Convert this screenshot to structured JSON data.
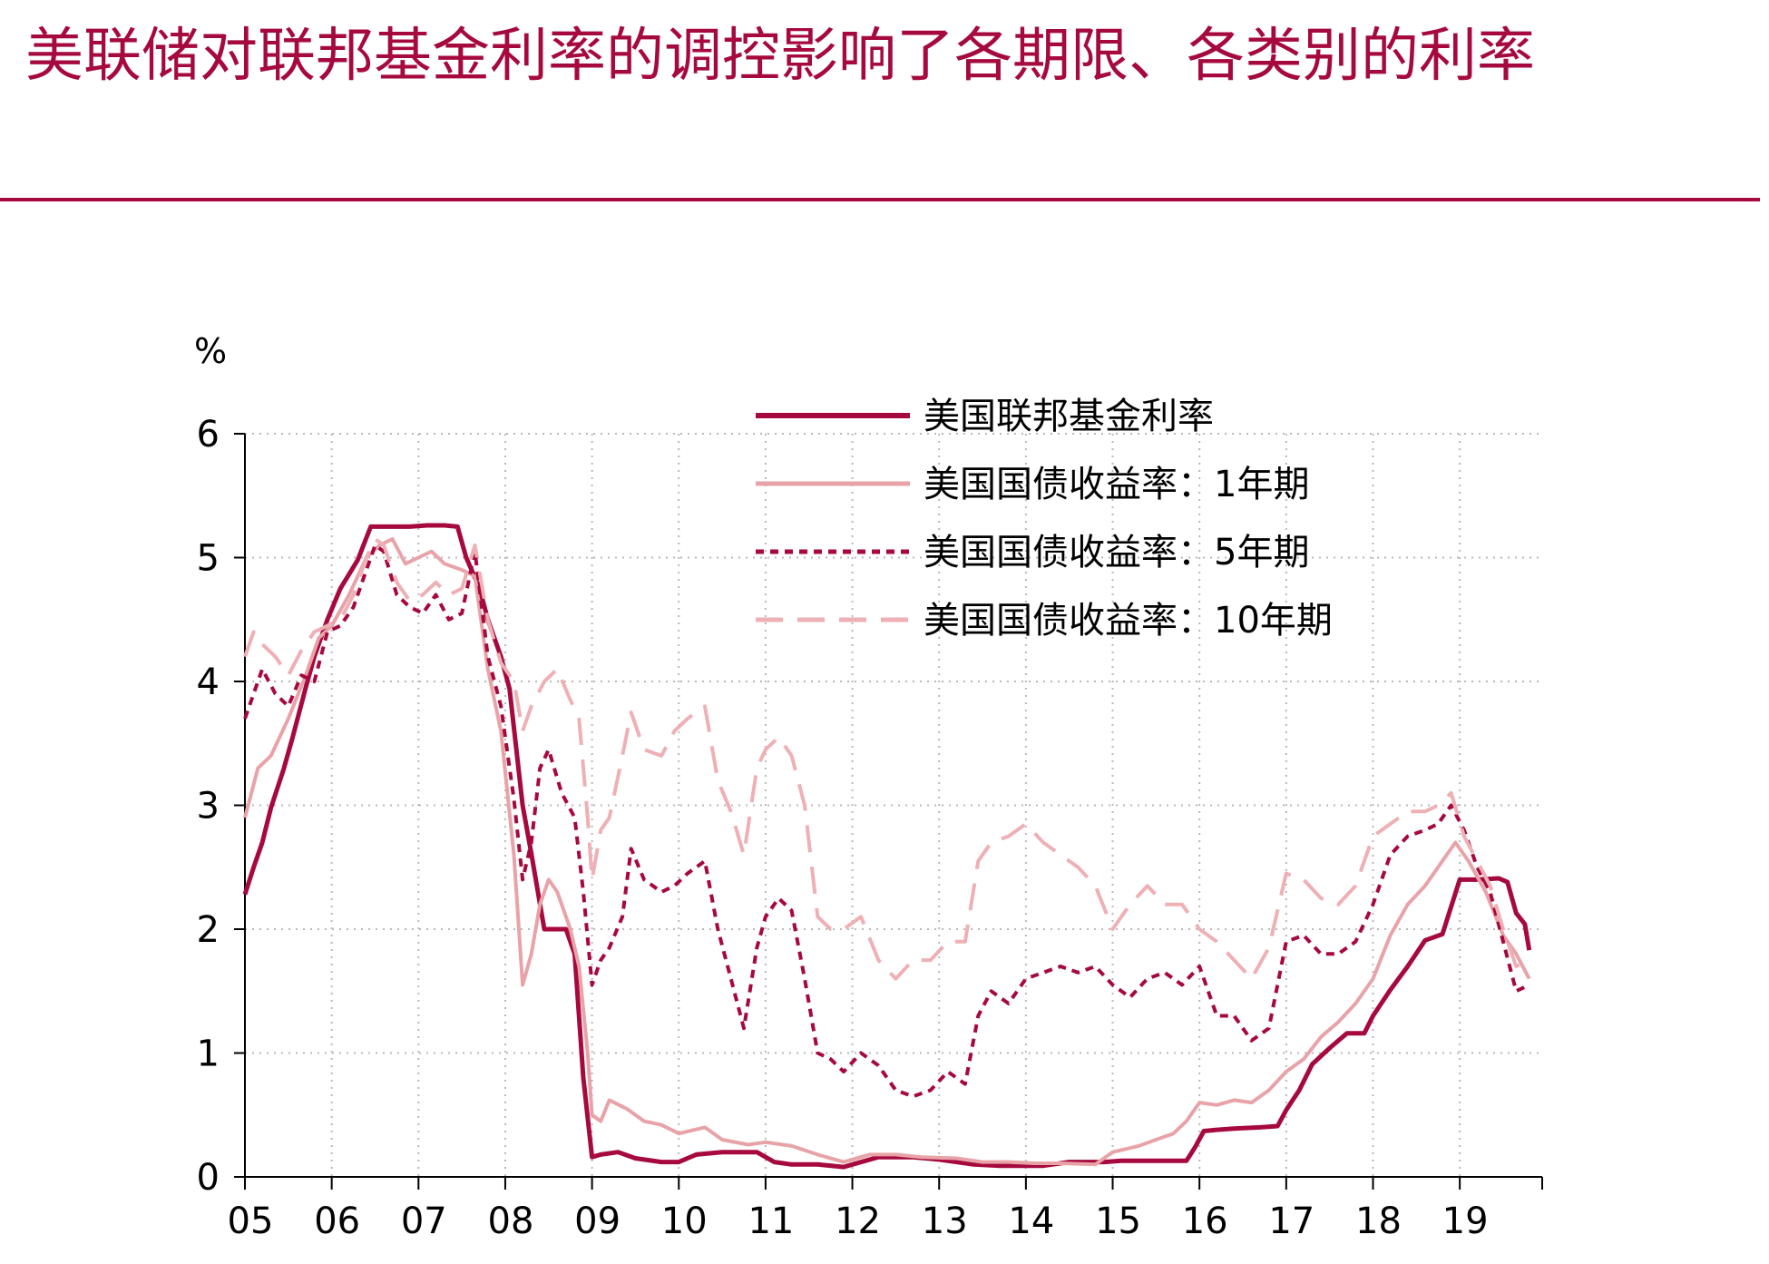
{
  "title": "美联储对联邦基金利率的调控影响了各期限、各类别的利率",
  "colors": {
    "title": "#a6093d",
    "rule": "#a6093d"
  },
  "chart_data": {
    "type": "line",
    "title": "",
    "ylabel": "%",
    "xlabel": "",
    "xlim": [
      2005,
      2019.95
    ],
    "ylim": [
      0,
      6
    ],
    "y_ticks": [
      0,
      1,
      2,
      3,
      4,
      5,
      6
    ],
    "x_ticks": [
      {
        "value": 2005,
        "label": "05"
      },
      {
        "value": 2006,
        "label": "06"
      },
      {
        "value": 2007,
        "label": "07"
      },
      {
        "value": 2008,
        "label": "08"
      },
      {
        "value": 2009,
        "label": "09"
      },
      {
        "value": 2010,
        "label": "10"
      },
      {
        "value": 2011,
        "label": "11"
      },
      {
        "value": 2012,
        "label": "12"
      },
      {
        "value": 2013,
        "label": "13"
      },
      {
        "value": 2014,
        "label": "14"
      },
      {
        "value": 2015,
        "label": "15"
      },
      {
        "value": 2016,
        "label": "16"
      },
      {
        "value": 2017,
        "label": "17"
      },
      {
        "value": 2018,
        "label": "18"
      },
      {
        "value": 2019,
        "label": "19"
      }
    ],
    "grid": "dotted",
    "legend_position": "top-right",
    "series": [
      {
        "name": "美国联邦基金利率",
        "color": "#a6093d",
        "dash": "solid",
        "width": 5,
        "x": [
          2005.0,
          2005.1,
          2005.2,
          2005.3,
          2005.45,
          2005.55,
          2005.7,
          2005.8,
          2005.95,
          2006.1,
          2006.3,
          2006.45,
          2006.55,
          2006.7,
          2006.9,
          2007.1,
          2007.3,
          2007.45,
          2007.55,
          2007.7,
          2007.8,
          2007.95,
          2008.05,
          2008.2,
          2008.3,
          2008.45,
          2008.6,
          2008.7,
          2008.8,
          2008.9,
          2009.0,
          2009.1,
          2009.3,
          2009.5,
          2009.8,
          2010.0,
          2010.2,
          2010.5,
          2010.9,
          2011.1,
          2011.3,
          2011.6,
          2011.9,
          2012.0,
          2012.3,
          2012.7,
          2013.0,
          2013.4,
          2013.7,
          2013.9,
          2014.2,
          2014.5,
          2014.9,
          2015.1,
          2015.5,
          2015.85,
          2015.95,
          2016.05,
          2016.2,
          2016.4,
          2016.7,
          2016.9,
          2017.0,
          2017.15,
          2017.3,
          2017.5,
          2017.7,
          2017.9,
          2018.0,
          2018.2,
          2018.4,
          2018.6,
          2018.8,
          2019.0,
          2019.2,
          2019.45,
          2019.55,
          2019.65,
          2019.75,
          2019.8
        ],
        "y": [
          2.28,
          2.5,
          2.7,
          2.98,
          3.3,
          3.55,
          3.95,
          4.2,
          4.5,
          4.75,
          4.98,
          5.25,
          5.25,
          5.25,
          5.25,
          5.26,
          5.26,
          5.25,
          5.0,
          4.76,
          4.5,
          4.2,
          3.94,
          3.0,
          2.61,
          2.0,
          2.0,
          2.0,
          1.8,
          0.8,
          0.16,
          0.18,
          0.2,
          0.15,
          0.12,
          0.12,
          0.18,
          0.2,
          0.2,
          0.12,
          0.1,
          0.1,
          0.08,
          0.1,
          0.16,
          0.16,
          0.14,
          0.1,
          0.09,
          0.09,
          0.09,
          0.12,
          0.12,
          0.13,
          0.13,
          0.13,
          0.24,
          0.37,
          0.38,
          0.39,
          0.4,
          0.41,
          0.54,
          0.7,
          0.91,
          1.04,
          1.16,
          1.16,
          1.3,
          1.51,
          1.7,
          1.91,
          1.96,
          2.4,
          2.4,
          2.41,
          2.38,
          2.13,
          2.04,
          1.83
        ]
      },
      {
        "name": "美国国债收益率：1年期",
        "color": "#e8a3a8",
        "dash": "solid",
        "width": 4,
        "x": [
          2005.0,
          2005.15,
          2005.3,
          2005.5,
          2005.7,
          2005.85,
          2006.0,
          2006.2,
          2006.4,
          2006.55,
          2006.7,
          2006.85,
          2007.0,
          2007.15,
          2007.3,
          2007.5,
          2007.65,
          2007.8,
          2007.95,
          2008.1,
          2008.2,
          2008.3,
          2008.4,
          2008.5,
          2008.6,
          2008.75,
          2008.85,
          2008.95,
          2009.0,
          2009.1,
          2009.2,
          2009.4,
          2009.6,
          2009.8,
          2010.0,
          2010.3,
          2010.5,
          2010.8,
          2011.0,
          2011.3,
          2011.6,
          2011.9,
          2012.2,
          2012.5,
          2012.8,
          2013.2,
          2013.5,
          2013.8,
          2014.1,
          2014.4,
          2014.8,
          2015.0,
          2015.3,
          2015.5,
          2015.7,
          2015.85,
          2016.0,
          2016.2,
          2016.4,
          2016.6,
          2016.8,
          2017.0,
          2017.2,
          2017.4,
          2017.6,
          2017.8,
          2018.0,
          2018.2,
          2018.4,
          2018.6,
          2018.8,
          2018.95,
          2019.1,
          2019.3,
          2019.5,
          2019.65,
          2019.8
        ],
        "y": [
          2.9,
          3.3,
          3.4,
          3.7,
          4.05,
          4.35,
          4.45,
          4.7,
          5.0,
          5.1,
          5.15,
          4.95,
          5.0,
          5.05,
          4.95,
          4.9,
          4.85,
          4.1,
          3.6,
          2.6,
          1.55,
          1.8,
          2.2,
          2.4,
          2.3,
          2.0,
          1.7,
          1.0,
          0.5,
          0.45,
          0.62,
          0.55,
          0.45,
          0.42,
          0.35,
          0.4,
          0.3,
          0.26,
          0.28,
          0.25,
          0.18,
          0.12,
          0.18,
          0.18,
          0.16,
          0.15,
          0.12,
          0.12,
          0.11,
          0.11,
          0.1,
          0.2,
          0.25,
          0.3,
          0.35,
          0.45,
          0.6,
          0.58,
          0.62,
          0.6,
          0.7,
          0.85,
          0.95,
          1.13,
          1.25,
          1.4,
          1.6,
          1.95,
          2.2,
          2.35,
          2.55,
          2.7,
          2.55,
          2.3,
          1.95,
          1.8,
          1.6
        ]
      },
      {
        "name": "美国国债收益率：5年期",
        "color": "#a6093d",
        "dash": "dot",
        "width": 4,
        "x": [
          2005.0,
          2005.1,
          2005.2,
          2005.35,
          2005.5,
          2005.65,
          2005.8,
          2005.95,
          2006.1,
          2006.25,
          2006.4,
          2006.5,
          2006.6,
          2006.75,
          2006.9,
          2007.05,
          2007.2,
          2007.35,
          2007.5,
          2007.65,
          2007.8,
          2007.95,
          2008.1,
          2008.2,
          2008.3,
          2008.4,
          2008.5,
          2008.65,
          2008.8,
          2008.9,
          2009.0,
          2009.1,
          2009.2,
          2009.35,
          2009.45,
          2009.6,
          2009.8,
          2009.95,
          2010.1,
          2010.3,
          2010.45,
          2010.6,
          2010.75,
          2010.9,
          2011.0,
          2011.15,
          2011.3,
          2011.45,
          2011.6,
          2011.75,
          2011.9,
          2012.1,
          2012.3,
          2012.5,
          2012.7,
          2012.9,
          2013.1,
          2013.3,
          2013.45,
          2013.6,
          2013.8,
          2014.0,
          2014.2,
          2014.4,
          2014.6,
          2014.8,
          2015.0,
          2015.2,
          2015.4,
          2015.6,
          2015.8,
          2016.0,
          2016.2,
          2016.4,
          2016.6,
          2016.8,
          2017.0,
          2017.2,
          2017.4,
          2017.6,
          2017.8,
          2018.0,
          2018.2,
          2018.4,
          2018.6,
          2018.75,
          2018.9,
          2019.05,
          2019.2,
          2019.35,
          2019.5,
          2019.65,
          2019.8
        ],
        "y": [
          3.7,
          3.9,
          4.1,
          3.9,
          3.8,
          4.05,
          4.0,
          4.4,
          4.45,
          4.6,
          4.9,
          5.1,
          5.05,
          4.7,
          4.6,
          4.55,
          4.7,
          4.5,
          4.55,
          5.05,
          4.2,
          3.8,
          3.05,
          2.4,
          2.7,
          3.3,
          3.45,
          3.1,
          2.9,
          2.3,
          1.55,
          1.75,
          1.85,
          2.1,
          2.65,
          2.4,
          2.3,
          2.35,
          2.45,
          2.55,
          2.0,
          1.6,
          1.2,
          1.85,
          2.1,
          2.25,
          2.15,
          1.6,
          1.0,
          0.95,
          0.85,
          1.0,
          0.9,
          0.7,
          0.65,
          0.7,
          0.85,
          0.75,
          1.3,
          1.5,
          1.4,
          1.6,
          1.65,
          1.7,
          1.65,
          1.7,
          1.55,
          1.45,
          1.6,
          1.65,
          1.55,
          1.7,
          1.3,
          1.3,
          1.1,
          1.2,
          1.9,
          1.95,
          1.8,
          1.8,
          1.9,
          2.2,
          2.6,
          2.75,
          2.8,
          2.85,
          3.0,
          2.8,
          2.5,
          2.3,
          1.9,
          1.5,
          1.55
        ]
      },
      {
        "name": "美国国债收益率：10年期",
        "color": "#eeb0b5",
        "dash": "dash",
        "width": 4,
        "x": [
          2005.0,
          2005.1,
          2005.2,
          2005.35,
          2005.5,
          2005.65,
          2005.8,
          2005.95,
          2006.1,
          2006.25,
          2006.4,
          2006.5,
          2006.6,
          2006.75,
          2006.9,
          2007.05,
          2007.2,
          2007.35,
          2007.5,
          2007.65,
          2007.8,
          2007.95,
          2008.1,
          2008.2,
          2008.3,
          2008.45,
          2008.6,
          2008.75,
          2008.85,
          2008.95,
          2009.0,
          2009.1,
          2009.2,
          2009.35,
          2009.45,
          2009.6,
          2009.8,
          2009.95,
          2010.1,
          2010.3,
          2010.45,
          2010.6,
          2010.75,
          2010.9,
          2011.0,
          2011.15,
          2011.3,
          2011.45,
          2011.6,
          2011.75,
          2011.9,
          2012.1,
          2012.3,
          2012.5,
          2012.7,
          2012.9,
          2013.1,
          2013.3,
          2013.45,
          2013.6,
          2013.8,
          2014.0,
          2014.2,
          2014.4,
          2014.6,
          2014.8,
          2015.0,
          2015.2,
          2015.4,
          2015.6,
          2015.8,
          2016.0,
          2016.2,
          2016.4,
          2016.6,
          2016.8,
          2017.0,
          2017.2,
          2017.4,
          2017.6,
          2017.8,
          2018.0,
          2018.2,
          2018.4,
          2018.6,
          2018.75,
          2018.9,
          2019.05,
          2019.2,
          2019.35,
          2019.5,
          2019.65,
          2019.8
        ],
        "y": [
          4.2,
          4.4,
          4.3,
          4.2,
          4.05,
          4.25,
          4.4,
          4.45,
          4.5,
          4.7,
          5.0,
          5.15,
          5.1,
          4.8,
          4.65,
          4.7,
          4.8,
          4.7,
          4.75,
          5.1,
          4.5,
          4.15,
          4.0,
          3.6,
          3.8,
          4.0,
          4.1,
          3.85,
          3.7,
          2.9,
          2.4,
          2.8,
          2.9,
          3.4,
          3.75,
          3.45,
          3.4,
          3.6,
          3.7,
          3.8,
          3.2,
          2.95,
          2.6,
          3.3,
          3.45,
          3.55,
          3.4,
          3.0,
          2.1,
          2.0,
          2.0,
          2.1,
          1.75,
          1.6,
          1.75,
          1.75,
          1.9,
          1.9,
          2.55,
          2.7,
          2.75,
          2.85,
          2.7,
          2.6,
          2.5,
          2.35,
          2.0,
          2.2,
          2.35,
          2.2,
          2.2,
          2.0,
          1.9,
          1.75,
          1.6,
          1.85,
          2.45,
          2.4,
          2.25,
          2.2,
          2.35,
          2.75,
          2.85,
          2.95,
          2.95,
          3.0,
          3.1,
          2.75,
          2.55,
          2.35,
          2.0,
          1.7,
          1.75
        ]
      }
    ]
  }
}
